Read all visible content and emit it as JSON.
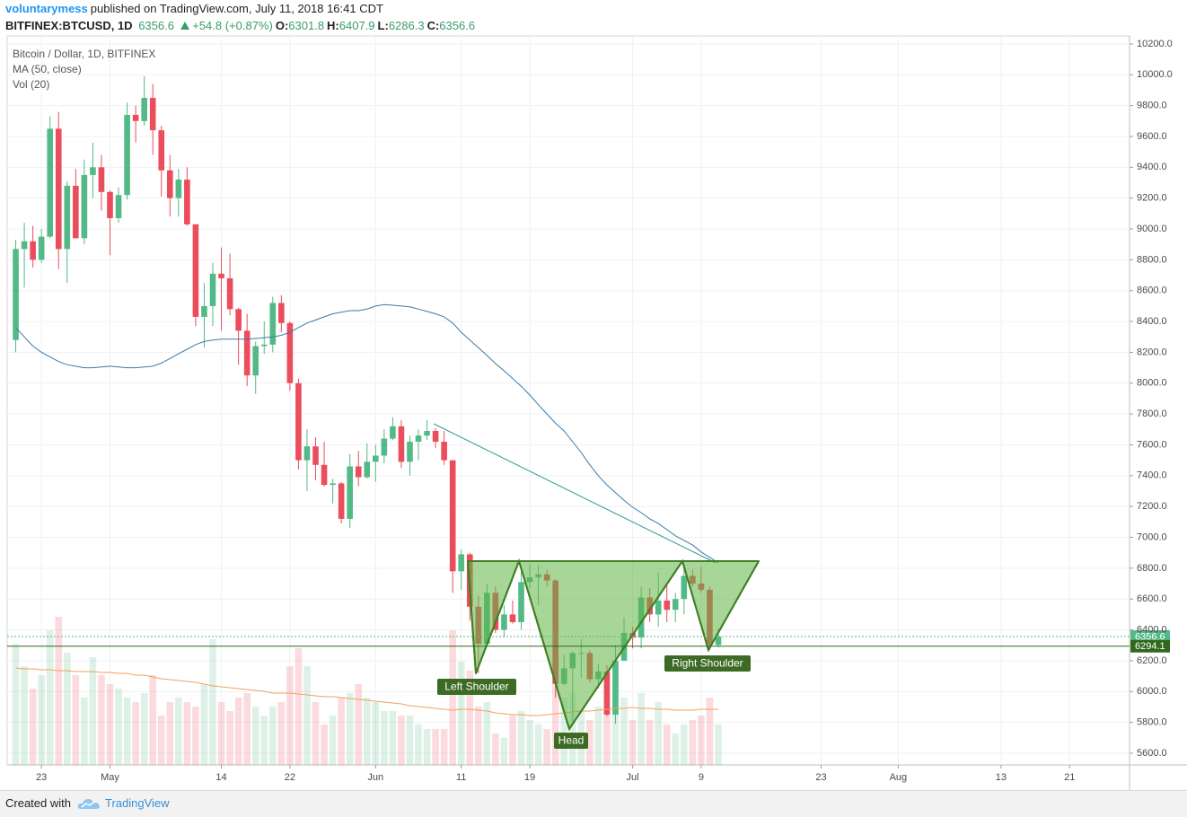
{
  "header": {
    "author": "voluntarymess",
    "published": "published on TradingView.com, July 11, 2018 16:41 CDT",
    "symbol": "BITFINEX:BTCUSD, 1D",
    "change": "+54.8 (+0.87%)",
    "ohlc_labels": [
      "O:",
      "H:",
      "L:",
      "C:"
    ]
  },
  "footer": {
    "created": "Created with",
    "brand": "TradingView"
  },
  "chart_data": {
    "type": "candlestick",
    "x": [
      "2018-04-20",
      "2018-04-21",
      "2018-04-22",
      "2018-04-23",
      "2018-04-24",
      "2018-04-25",
      "2018-04-26",
      "2018-04-27",
      "2018-04-28",
      "2018-04-29",
      "2018-04-30",
      "2018-05-01",
      "2018-05-02",
      "2018-05-03",
      "2018-05-04",
      "2018-05-05",
      "2018-05-06",
      "2018-05-07",
      "2018-05-08",
      "2018-05-09",
      "2018-05-10",
      "2018-05-11",
      "2018-05-12",
      "2018-05-13",
      "2018-05-14",
      "2018-05-15",
      "2018-05-16",
      "2018-05-17",
      "2018-05-18",
      "2018-05-19",
      "2018-05-20",
      "2018-05-21",
      "2018-05-22",
      "2018-05-23",
      "2018-05-24",
      "2018-05-25",
      "2018-05-26",
      "2018-05-27",
      "2018-05-28",
      "2018-05-29",
      "2018-05-30",
      "2018-05-31",
      "2018-06-01",
      "2018-06-02",
      "2018-06-03",
      "2018-06-04",
      "2018-06-05",
      "2018-06-06",
      "2018-06-07",
      "2018-06-08",
      "2018-06-09",
      "2018-06-10",
      "2018-06-11",
      "2018-06-12",
      "2018-06-13",
      "2018-06-14",
      "2018-06-15",
      "2018-06-16",
      "2018-06-17",
      "2018-06-18",
      "2018-06-19",
      "2018-06-20",
      "2018-06-21",
      "2018-06-22",
      "2018-06-23",
      "2018-06-24",
      "2018-06-25",
      "2018-06-26",
      "2018-06-27",
      "2018-06-28",
      "2018-06-29",
      "2018-06-30",
      "2018-07-01",
      "2018-07-02",
      "2018-07-03",
      "2018-07-04",
      "2018-07-05",
      "2018-07-06",
      "2018-07-07",
      "2018-07-08",
      "2018-07-09",
      "2018-07-10",
      "2018-07-11"
    ],
    "series": [
      {
        "name": "Bitcoin / Dollar, 1D, BITFINEX",
        "up_color": "#53b987",
        "down_color": "#eb4d5c",
        "open": [
          8280,
          8870,
          8920,
          8800,
          8950,
          9650,
          8870,
          9280,
          8940,
          9350,
          9400,
          9240,
          9070,
          9220,
          9740,
          9700,
          9850,
          9640,
          9380,
          9200,
          9320,
          9030,
          8430,
          8500,
          8710,
          8680,
          8480,
          8340,
          8050,
          8240,
          8250,
          8520,
          8390,
          8000,
          7500,
          7590,
          7470,
          7340,
          7350,
          7120,
          7460,
          7390,
          7490,
          7530,
          7640,
          7720,
          7490,
          7620,
          7660,
          7690,
          7620,
          7500,
          6780,
          6890,
          6550,
          6310,
          6640,
          6400,
          6500,
          6450,
          6710,
          6740,
          6760,
          6720,
          6050,
          6150,
          6250,
          6250,
          6080,
          6130,
          5850,
          6200,
          6380,
          6350,
          6610,
          6500,
          6590,
          6530,
          6600,
          6750,
          6700,
          6660,
          6301.8
        ],
        "high": [
          8930,
          9040,
          9020,
          9000,
          9730,
          9760,
          9310,
          9390,
          9450,
          9560,
          9480,
          9250,
          9270,
          9820,
          9800,
          9990,
          9940,
          9670,
          9480,
          9390,
          9400,
          9030,
          8650,
          8780,
          8880,
          8840,
          8490,
          8450,
          8270,
          8400,
          8560,
          8570,
          8400,
          8030,
          7700,
          7650,
          7620,
          7380,
          7360,
          7540,
          7560,
          7610,
          7600,
          7700,
          7780,
          7760,
          7660,
          7700,
          7760,
          7710,
          7690,
          7500,
          6920,
          6900,
          6620,
          6700,
          6680,
          6560,
          6590,
          6800,
          6830,
          6820,
          6790,
          6730,
          6240,
          6260,
          6340,
          6270,
          6180,
          6170,
          6300,
          6480,
          6420,
          6680,
          6670,
          6770,
          6690,
          6640,
          6800,
          6790,
          6810,
          6680,
          6407.9
        ],
        "low": [
          8200,
          8620,
          8750,
          8780,
          8940,
          8740,
          8650,
          8940,
          8900,
          9200,
          9120,
          8830,
          9040,
          9190,
          9560,
          9670,
          9480,
          9210,
          9080,
          9080,
          9020,
          8370,
          8230,
          8370,
          8340,
          8440,
          8120,
          7980,
          7930,
          8190,
          8200,
          8330,
          7950,
          7440,
          7300,
          7370,
          7330,
          7220,
          7090,
          7060,
          7330,
          7380,
          7360,
          7480,
          7630,
          7450,
          7400,
          7500,
          7630,
          7580,
          7470,
          6640,
          6660,
          6460,
          6120,
          6300,
          6380,
          6350,
          6440,
          6400,
          6670,
          6560,
          6680,
          5960,
          6040,
          5780,
          6090,
          6060,
          6020,
          5840,
          5790,
          6200,
          6280,
          6280,
          6450,
          6420,
          6450,
          6450,
          6500,
          6680,
          6640,
          6270,
          6286.3
        ],
        "close": [
          8870,
          8920,
          8800,
          8950,
          9650,
          8870,
          9280,
          8940,
          9350,
          9400,
          9240,
          9070,
          9220,
          9740,
          9700,
          9850,
          9640,
          9380,
          9200,
          9320,
          9030,
          8430,
          8500,
          8710,
          8680,
          8480,
          8340,
          8050,
          8240,
          8250,
          8520,
          8390,
          8000,
          7500,
          7590,
          7470,
          7340,
          7350,
          7120,
          7460,
          7390,
          7490,
          7530,
          7640,
          7720,
          7490,
          7620,
          7660,
          7690,
          7620,
          7500,
          6780,
          6890,
          6550,
          6310,
          6640,
          6400,
          6500,
          6450,
          6710,
          6740,
          6760,
          6720,
          6050,
          6150,
          6250,
          6250,
          6080,
          6130,
          5850,
          6200,
          6380,
          6350,
          6610,
          6500,
          6590,
          6530,
          6600,
          6750,
          6700,
          6660,
          6301.8,
          6356.6
        ]
      },
      {
        "name": "MA (50, close)",
        "color": "#3b7aa8",
        "values": [
          8360,
          8300,
          8240,
          8200,
          8170,
          8140,
          8120,
          8110,
          8100,
          8100,
          8105,
          8110,
          8105,
          8100,
          8100,
          8105,
          8110,
          8130,
          8160,
          8190,
          8220,
          8250,
          8270,
          8280,
          8285,
          8285,
          8285,
          8285,
          8290,
          8295,
          8300,
          8310,
          8330,
          8360,
          8390,
          8410,
          8430,
          8450,
          8460,
          8470,
          8470,
          8480,
          8500,
          8510,
          8505,
          8500,
          8495,
          8480,
          8465,
          8450,
          8430,
          8390,
          8330,
          8280,
          8230,
          8180,
          8127,
          8080,
          8030,
          7980,
          7923,
          7860,
          7800,
          7740,
          7690,
          7620,
          7550,
          7470,
          7400,
          7340,
          7290,
          7240,
          7195,
          7160,
          7120,
          7090,
          7050,
          7010,
          6980,
          6950,
          6905,
          6870,
          6835
        ]
      },
      {
        "name": "Vol (20)",
        "up_color": "#53b987",
        "down_color": "#eb4d5c",
        "ma_color": "#f2a15f",
        "ylim": [
          0,
          250
        ],
        "values": [
          135,
          110,
          85,
          100,
          150,
          165,
          125,
          100,
          75,
          120,
          100,
          90,
          85,
          75,
          70,
          80,
          100,
          55,
          70,
          75,
          70,
          65,
          90,
          140,
          70,
          60,
          75,
          80,
          65,
          55,
          65,
          70,
          110,
          130,
          110,
          70,
          45,
          55,
          75,
          80,
          90,
          75,
          70,
          60,
          60,
          55,
          55,
          45,
          40,
          40,
          40,
          150,
          115,
          105,
          65,
          70,
          35,
          30,
          55,
          60,
          50,
          45,
          40,
          120,
          75,
          80,
          60,
          50,
          65,
          60,
          115,
          75,
          50,
          80,
          50,
          70,
          45,
          35,
          45,
          50,
          55,
          75,
          45
        ],
        "ma": [
          108,
          107,
          107,
          106,
          106,
          105,
          105,
          104,
          104,
          104,
          103,
          103,
          102,
          102,
          100,
          100,
          98,
          96,
          95,
          94,
          93,
          92,
          90,
          88,
          87,
          86,
          85,
          84,
          83,
          82,
          80,
          80,
          80,
          79,
          78,
          77,
          76,
          76,
          75,
          74,
          73,
          72,
          71,
          70,
          69,
          68,
          66,
          65,
          64,
          63,
          62,
          61,
          62,
          62,
          61,
          60,
          58,
          57,
          56,
          56,
          55,
          55,
          56,
          57,
          58,
          59,
          60,
          60,
          61,
          62,
          63,
          63,
          64,
          63,
          63,
          62,
          62,
          61,
          61,
          61,
          62,
          62,
          62
        ]
      }
    ],
    "price_lines": [
      {
        "value": 6356.6,
        "color": "#53b987",
        "style": "dotted"
      },
      {
        "value": 6294.1,
        "color": "#2f6a1c",
        "style": "solid"
      }
    ],
    "annotations": [
      "Left Shoulder",
      "Head",
      "Right Shoulder"
    ],
    "xlim": [
      "2018-04-19",
      "2018-08-28"
    ],
    "xticks": [
      {
        "value": "2018-04-23",
        "label": "23"
      },
      {
        "value": "2018-05-01",
        "label": "May"
      },
      {
        "value": "2018-05-14",
        "label": "14"
      },
      {
        "value": "2018-05-22",
        "label": "22"
      },
      {
        "value": "2018-06-01",
        "label": "Jun"
      },
      {
        "value": "2018-06-11",
        "label": "11"
      },
      {
        "value": "2018-06-19",
        "label": "19"
      },
      {
        "value": "2018-07-01",
        "label": "Jul"
      },
      {
        "value": "2018-07-09",
        "label": "9"
      },
      {
        "value": "2018-07-23",
        "label": "23"
      },
      {
        "value": "2018-08-01",
        "label": "Aug"
      },
      {
        "value": "2018-08-13",
        "label": "13"
      },
      {
        "value": "2018-08-21",
        "label": "21"
      }
    ],
    "ylim": [
      5524,
      10252
    ],
    "yticks": [
      {
        "value": 5600,
        "label": "5600.0"
      },
      {
        "value": 5800,
        "label": "5800.0"
      },
      {
        "value": 6000,
        "label": "6000.0"
      },
      {
        "value": 6200,
        "label": "6200.0"
      },
      {
        "value": 6400,
        "label": "6400.0"
      },
      {
        "value": 6600,
        "label": "6600.0"
      },
      {
        "value": 6800,
        "label": "6800.0"
      },
      {
        "value": 7000,
        "label": "7000.0"
      },
      {
        "value": 7200,
        "label": "7200.0"
      },
      {
        "value": 7400,
        "label": "7400.0"
      },
      {
        "value": 7600,
        "label": "7600.0"
      },
      {
        "value": 7800,
        "label": "7800.0"
      },
      {
        "value": 8000,
        "label": "8000.0"
      },
      {
        "value": 8200,
        "label": "8200.0"
      },
      {
        "value": 8400,
        "label": "8400.0"
      },
      {
        "value": 8600,
        "label": "8600.0"
      },
      {
        "value": 8800,
        "label": "8800.0"
      },
      {
        "value": 9000,
        "label": "9000.0"
      },
      {
        "value": 9200,
        "label": "9200.0"
      },
      {
        "value": 9400,
        "label": "9400.0"
      },
      {
        "value": 9600,
        "label": "9600.0"
      },
      {
        "value": 9800,
        "label": "9800.0"
      },
      {
        "value": 10000,
        "label": "10000.0"
      },
      {
        "value": 10200,
        "label": "10200.0"
      }
    ],
    "grid": true
  }
}
